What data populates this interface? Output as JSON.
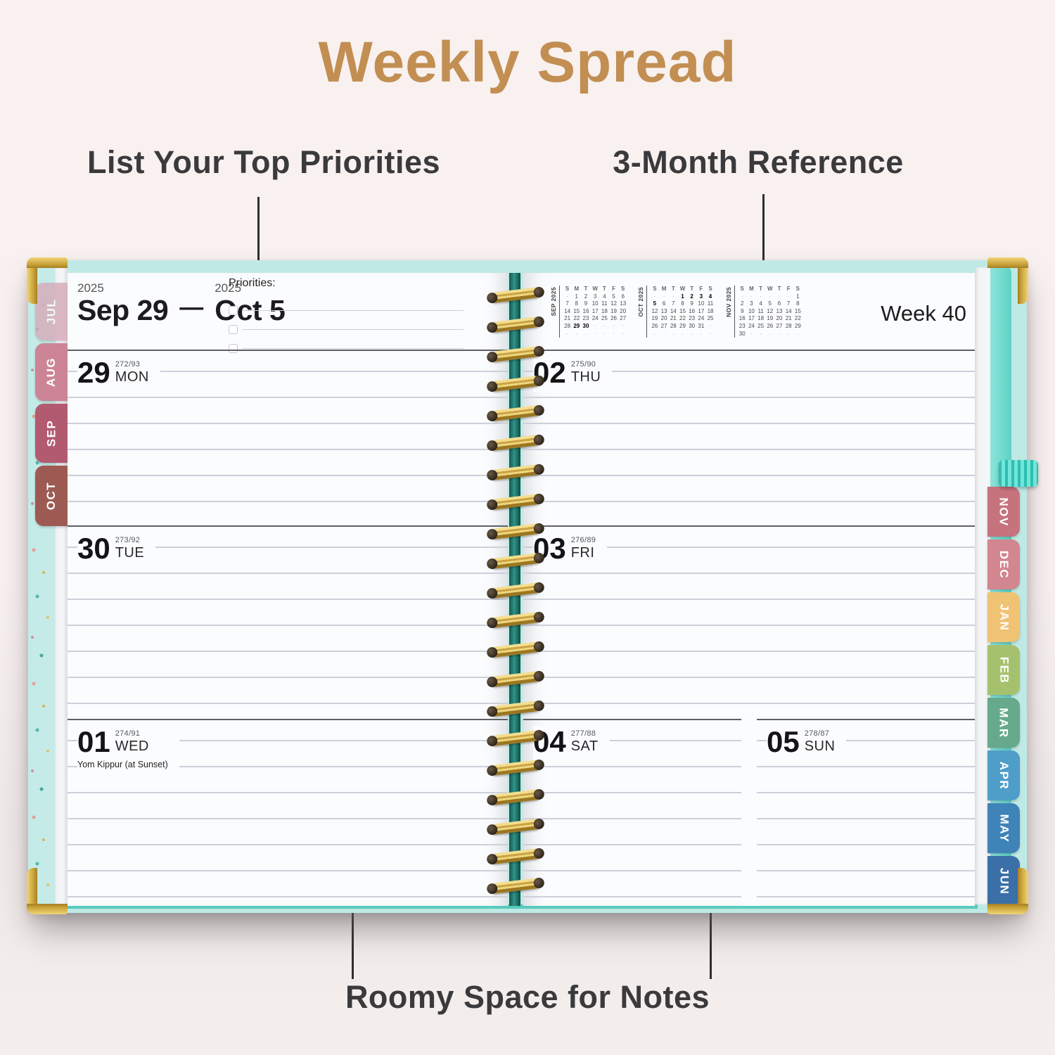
{
  "title": "Weekly Spread",
  "callouts": {
    "priorities": "List Your Top Priorities",
    "reference": "3-Month Reference",
    "notes": "Roomy Space for Notes"
  },
  "left_header": {
    "year_start": "2025",
    "date_start": "Sep 29",
    "dash": "—",
    "year_end": "2025",
    "date_end": "Oct 5",
    "priorities_label": "Priorities:"
  },
  "right_header": {
    "week_label": "Week 40"
  },
  "days_left": [
    {
      "num": "29",
      "ord": "272/93",
      "dow": "MON"
    },
    {
      "num": "30",
      "ord": "273/92",
      "dow": "TUE"
    },
    {
      "num": "01",
      "ord": "274/91",
      "dow": "WED",
      "note": "Yom Kippur (at Sunset)"
    }
  ],
  "days_right": [
    {
      "num": "02",
      "ord": "275/90",
      "dow": "THU"
    },
    {
      "num": "03",
      "ord": "276/89",
      "dow": "FRI"
    },
    {
      "num": "04",
      "ord": "277/88",
      "dow": "SAT"
    },
    {
      "num": "05",
      "ord": "278/87",
      "dow": "SUN"
    }
  ],
  "mini_calendars": [
    {
      "label": "SEP 2025",
      "dow": [
        "S",
        "M",
        "T",
        "W",
        "T",
        "F",
        "S"
      ],
      "rows": [
        [
          "·",
          "1",
          "2",
          "3",
          "4",
          "5",
          "6"
        ],
        [
          "7",
          "8",
          "9",
          "10",
          "11",
          "12",
          "13"
        ],
        [
          "14",
          "15",
          "16",
          "17",
          "18",
          "19",
          "20"
        ],
        [
          "21",
          "22",
          "23",
          "24",
          "25",
          "26",
          "27"
        ],
        [
          "28",
          "29",
          "30",
          "·",
          "·",
          "·",
          "·"
        ],
        [
          "·",
          "·",
          "·",
          "·",
          "·",
          "·",
          "·"
        ]
      ],
      "bold": [
        "29",
        "30"
      ]
    },
    {
      "label": "OCT 2025",
      "dow": [
        "S",
        "M",
        "T",
        "W",
        "T",
        "F",
        "S"
      ],
      "rows": [
        [
          "·",
          "·",
          "·",
          "1",
          "2",
          "3",
          "4"
        ],
        [
          "5",
          "6",
          "7",
          "8",
          "9",
          "10",
          "11"
        ],
        [
          "12",
          "13",
          "14",
          "15",
          "16",
          "17",
          "18"
        ],
        [
          "19",
          "20",
          "21",
          "22",
          "23",
          "24",
          "25"
        ],
        [
          "26",
          "27",
          "28",
          "29",
          "30",
          "31",
          "·"
        ],
        [
          "·",
          "·",
          "·",
          "·",
          "·",
          "·",
          "·"
        ]
      ],
      "bold": [
        "1",
        "2",
        "3",
        "4",
        "5"
      ]
    },
    {
      "label": "NOV 2025",
      "dow": [
        "S",
        "M",
        "T",
        "W",
        "T",
        "F",
        "S"
      ],
      "rows": [
        [
          "·",
          "·",
          "·",
          "·",
          "·",
          "·",
          "1"
        ],
        [
          "2",
          "3",
          "4",
          "5",
          "6",
          "7",
          "8"
        ],
        [
          "9",
          "10",
          "11",
          "12",
          "13",
          "14",
          "15"
        ],
        [
          "16",
          "17",
          "18",
          "19",
          "20",
          "21",
          "22"
        ],
        [
          "23",
          "24",
          "25",
          "26",
          "27",
          "28",
          "29"
        ],
        [
          "30",
          "·",
          "·",
          "·",
          "·",
          "·",
          "·"
        ]
      ],
      "bold": []
    }
  ],
  "tabs_left": [
    {
      "label": "JUL",
      "color": "#d6aab8"
    },
    {
      "label": "AUG",
      "color": "#cc8496"
    },
    {
      "label": "SEP",
      "color": "#b25a70"
    },
    {
      "label": "OCT",
      "color": "#9d5a53"
    }
  ],
  "tabs_right": [
    {
      "label": "NOV",
      "color": "#c6737d"
    },
    {
      "label": "DEC",
      "color": "#d2868f"
    },
    {
      "label": "JAN",
      "color": "#f0c274"
    },
    {
      "label": "FEB",
      "color": "#a6c16e"
    },
    {
      "label": "MAR",
      "color": "#66a98c"
    },
    {
      "label": "APR",
      "color": "#4f9dc9"
    },
    {
      "label": "MAY",
      "color": "#3f84b8"
    },
    {
      "label": "JUN",
      "color": "#3a6fa8"
    }
  ],
  "colors": {
    "accent": "#c28e52",
    "label_text": "#3a3a3d",
    "cover_teal": "#8ce4da",
    "gold": "#c79e36",
    "spine_teal": "#2f9488"
  }
}
